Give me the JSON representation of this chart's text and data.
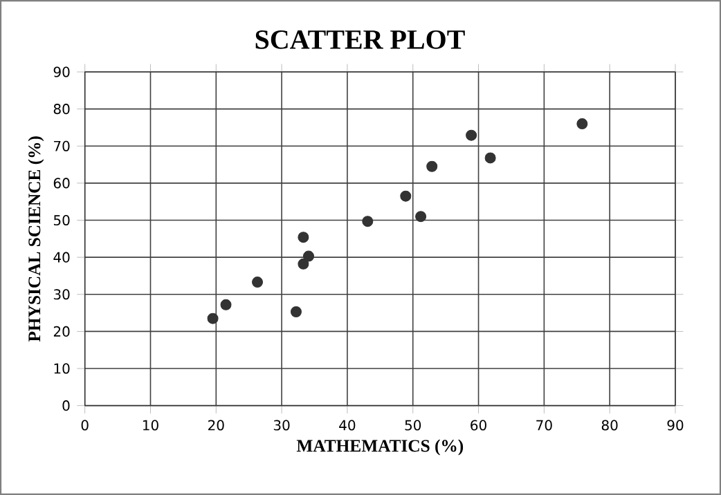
{
  "chart_data": {
    "type": "scatter",
    "title": "SCATTER PLOT",
    "xlabel": "MATHEMATICS (%)",
    "ylabel": "PHYSICAL SCIENCE (%)",
    "x": [
      19.5,
      21.5,
      26.3,
      32.2,
      33.3,
      34.1,
      33.3,
      43.1,
      48.9,
      51.2,
      52.9,
      58.9,
      61.8,
      75.8
    ],
    "values": [
      23.5,
      27.2,
      33.3,
      25.3,
      38.2,
      40.3,
      45.4,
      49.7,
      56.5,
      51.0,
      64.5,
      72.9,
      66.8,
      76.0
    ],
    "color": "#333333",
    "marker": "circle",
    "grid": true,
    "xlim": [
      0,
      90
    ],
    "ylim": [
      0,
      90
    ],
    "xticks": [
      0,
      10,
      20,
      30,
      40,
      50,
      60,
      70,
      80,
      90
    ],
    "yticks": [
      0,
      10,
      20,
      30,
      40,
      50,
      60,
      70,
      80,
      90
    ]
  }
}
